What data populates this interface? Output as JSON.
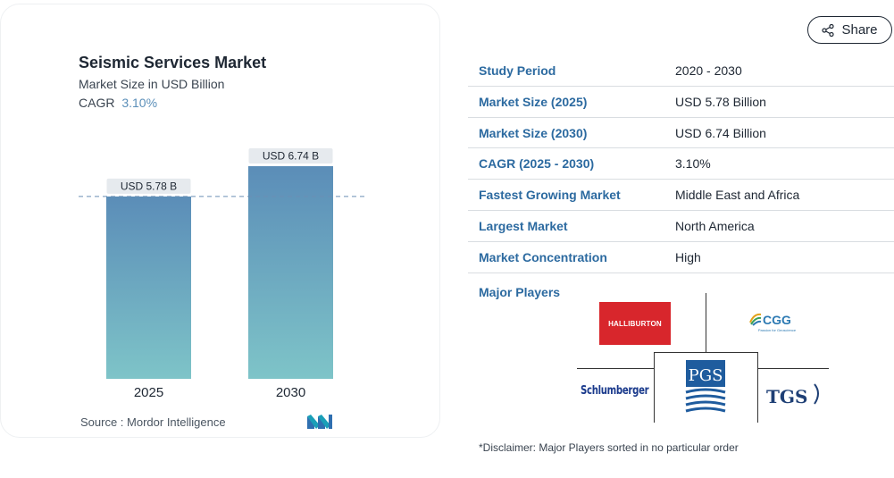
{
  "chart": {
    "title": "Seismic Services Market",
    "subtitle": "Market Size in USD Billion",
    "cagr_label": "CAGR",
    "cagr_value": "3.10%",
    "source": "Source : Mordor Intelligence",
    "source_logo": "mordor-intelligence-logo"
  },
  "chart_data": {
    "type": "bar",
    "categories": [
      "2025",
      "2030"
    ],
    "values": [
      5.78,
      6.74
    ],
    "data_labels": [
      "USD 5.78 B",
      "USD 6.74 B"
    ],
    "title": "Seismic Services Market",
    "subtitle": "Market Size in USD Billion",
    "xlabel": "",
    "ylabel": "",
    "ylim": [
      0,
      6.74
    ],
    "grid": false,
    "reference_line_value": 5.78,
    "bar_color_top": "#5b8db8",
    "bar_color_bottom": "#7ec4c8"
  },
  "share": {
    "label": "Share",
    "icon": "share-icon"
  },
  "info_table": [
    {
      "label": "Study Period",
      "value": "2020 - 2030"
    },
    {
      "label": "Market Size (2025)",
      "value": "USD 5.78 Billion"
    },
    {
      "label": "Market Size (2030)",
      "value": "USD 6.74 Billion"
    },
    {
      "label": "CAGR (2025 - 2030)",
      "value": "3.10%"
    },
    {
      "label": "Fastest Growing Market",
      "value": "Middle East and Africa"
    },
    {
      "label": "Largest Market",
      "value": "North America"
    },
    {
      "label": "Market Concentration",
      "value": "High"
    }
  ],
  "major_players": {
    "title": "Major Players",
    "logos": {
      "halliburton": "HALLIBURTON",
      "cgg": "CGG",
      "cgg_tagline": "Passion for Geoscience",
      "schlumberger": "Schlumberger",
      "pgs": "PGS",
      "tgs": "TGS"
    }
  },
  "disclaimer": "*Disclaimer: Major Players sorted in no particular order",
  "colors": {
    "accent_blue": "#2c6aa0",
    "cagr_blue": "#5b8fb9",
    "halliburton_red": "#d8262c"
  }
}
